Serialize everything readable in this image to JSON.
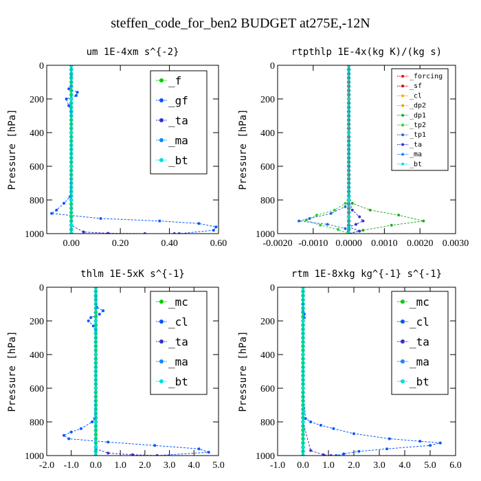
{
  "title": "steffen_code_for_ben2  BUDGET at275E,-12N",
  "chart_data": [
    {
      "type": "line",
      "title": "um  1E-4xm s^{-2}",
      "ylabel": "Pressure [hPa]",
      "xlim": [
        -0.1,
        0.6
      ],
      "ylim": [
        1000,
        0
      ],
      "xticks": [
        0.0,
        0.2,
        0.4,
        0.6
      ],
      "xtick_labels": [
        "0.00",
        "0.20",
        "0.40",
        "0.60"
      ],
      "yticks": [
        0,
        200,
        400,
        600,
        800,
        1000
      ],
      "ytick_labels": [
        "0",
        "200",
        "400",
        "600",
        "800",
        "1000"
      ],
      "legend": {
        "entries": [
          "_f",
          "_gf",
          "_ta",
          "_ma",
          "_bt"
        ],
        "placement": "top-right"
      },
      "series": [
        {
          "name": "_f",
          "color": "#00cc00",
          "x": [
            0,
            0,
            0,
            0,
            0,
            0,
            0,
            0,
            0,
            0,
            0
          ],
          "y": [
            0,
            100,
            200,
            300,
            400,
            500,
            600,
            700,
            800,
            900,
            1000
          ]
        },
        {
          "name": "_gf",
          "color": "#0055ff",
          "x": [
            0,
            0,
            0.0,
            -0.01,
            0.025,
            0.02,
            -0.02,
            -0.01,
            0,
            0,
            0,
            -0.005,
            -0.03,
            -0.06,
            -0.08,
            0.12,
            0.36,
            0.52,
            0.59,
            0.58,
            0.44
          ],
          "y": [
            0,
            60,
            120,
            140,
            160,
            180,
            200,
            240,
            280,
            400,
            600,
            780,
            820,
            860,
            880,
            910,
            925,
            940,
            960,
            980,
            1000
          ]
        },
        {
          "name": "_ta",
          "color": "#3333cc",
          "x": [
            0,
            0,
            0,
            0,
            0,
            0,
            0.05,
            0.15,
            0.3,
            0.42
          ],
          "y": [
            0,
            200,
            400,
            600,
            800,
            950,
            990,
            998,
            1000,
            1000
          ]
        },
        {
          "name": "_ma",
          "color": "#1188ff",
          "x": [
            0,
            0,
            0,
            0,
            0,
            0
          ],
          "y": [
            0,
            200,
            400,
            600,
            800,
            1000
          ]
        },
        {
          "name": "_bt",
          "color": "#00dddd",
          "x": [
            0,
            0,
            0,
            0,
            0,
            0,
            0
          ],
          "y": [
            0,
            200,
            400,
            600,
            800,
            950,
            1000
          ]
        }
      ]
    },
    {
      "type": "line",
      "title": "rtpthlp  1E-4x(kg K)/(kg s)",
      "ylabel": "Pressure [hPa]",
      "xlim": [
        -0.002,
        0.003
      ],
      "ylim": [
        1000,
        0
      ],
      "xticks": [
        -0.002,
        -0.001,
        0.0,
        0.001,
        0.002,
        0.003
      ],
      "xtick_labels": [
        "-0.0020",
        "-0.0010",
        "0.0000",
        "0.0010",
        "0.0020",
        "0.0030"
      ],
      "yticks": [
        0,
        200,
        400,
        600,
        800,
        1000
      ],
      "ytick_labels": [
        "0",
        "200",
        "400",
        "600",
        "800",
        "1000"
      ],
      "legend": {
        "entries": [
          "_forcing",
          "_sf",
          "_cl",
          "_dp2",
          "_dp1",
          "_tp2",
          "_tp1",
          "_ta",
          "_ma",
          "_bt"
        ],
        "placement": "top-right"
      },
      "series": [
        {
          "name": "_forcing",
          "color": "#ff0000",
          "x": [
            0,
            0,
            0,
            0,
            0,
            0,
            0
          ],
          "y": [
            0,
            200,
            400,
            600,
            800,
            900,
            1000
          ]
        },
        {
          "name": "_sf",
          "color": "#cc0000",
          "x": [
            0,
            0,
            0,
            0,
            0,
            0
          ],
          "y": [
            0,
            200,
            400,
            600,
            800,
            1000
          ]
        },
        {
          "name": "_cl",
          "color": "#ffaa00",
          "x": [
            0,
            0,
            0,
            0,
            0,
            0
          ],
          "y": [
            0,
            200,
            400,
            600,
            800,
            1000
          ]
        },
        {
          "name": "_dp2",
          "color": "#ddaa00",
          "x": [
            0,
            0,
            0,
            0,
            0,
            0
          ],
          "y": [
            0,
            200,
            400,
            600,
            800,
            1000
          ]
        },
        {
          "name": "_dp1",
          "color": "#22aa22",
          "x": [
            0,
            0,
            0,
            0.0001,
            0.0006,
            0.0014,
            0.0021,
            0.0012,
            0.0004,
            0
          ],
          "y": [
            0,
            600,
            780,
            820,
            860,
            890,
            925,
            950,
            980,
            1000
          ]
        },
        {
          "name": "_tp2",
          "color": "#33cc33",
          "x": [
            0,
            0,
            0,
            -0.0001,
            -0.0004,
            -0.0009,
            -0.0012,
            -0.0008,
            -0.0003,
            0
          ],
          "y": [
            0,
            600,
            780,
            820,
            860,
            890,
            920,
            950,
            975,
            1000
          ]
        },
        {
          "name": "_tp1",
          "color": "#2266dd",
          "x": [
            0,
            0,
            0,
            -0.0001,
            -0.0005,
            -0.0011,
            -0.0014,
            -0.0006,
            -0.0001,
            0
          ],
          "y": [
            0,
            600,
            800,
            840,
            880,
            910,
            925,
            945,
            970,
            1000
          ]
        },
        {
          "name": "_ta",
          "color": "#3333cc",
          "x": [
            0,
            0,
            0,
            0.0001,
            0.0003,
            0.0004,
            0.0002,
            0,
            0.0003,
            0
          ],
          "y": [
            0,
            600,
            800,
            860,
            900,
            925,
            945,
            960,
            985,
            1000
          ]
        },
        {
          "name": "_ma",
          "color": "#1188ff",
          "x": [
            0,
            0,
            0,
            0,
            0
          ],
          "y": [
            0,
            400,
            800,
            900,
            1000
          ]
        },
        {
          "name": "_bt",
          "color": "#00dddd",
          "x": [
            0,
            0,
            0,
            0,
            0
          ],
          "y": [
            0,
            400,
            800,
            900,
            1000
          ]
        }
      ]
    },
    {
      "type": "line",
      "title": "thlm  1E-5xK s^{-1}",
      "ylabel": "Pressure [hPa]",
      "xlim": [
        -2.0,
        5.0
      ],
      "ylim": [
        1000,
        0
      ],
      "xticks": [
        -2.0,
        -1.0,
        0.0,
        1.0,
        2.0,
        3.0,
        4.0,
        5.0
      ],
      "xtick_labels": [
        "-2.0",
        "-1.0",
        "0.0",
        "1.0",
        "2.0",
        "3.0",
        "4.0",
        "5.0"
      ],
      "yticks": [
        0,
        200,
        400,
        600,
        800,
        1000
      ],
      "ytick_labels": [
        "0",
        "200",
        "400",
        "600",
        "800",
        "1000"
      ],
      "legend": {
        "entries": [
          "_mc",
          "_cl",
          "_ta",
          "_ma",
          "_bt"
        ],
        "placement": "top-right"
      },
      "series": [
        {
          "name": "_mc",
          "color": "#00cc00",
          "x": [
            0,
            0,
            0,
            0,
            0,
            0,
            0,
            0,
            0,
            0,
            0
          ],
          "y": [
            0,
            100,
            200,
            300,
            400,
            500,
            600,
            700,
            800,
            900,
            1000
          ]
        },
        {
          "name": "_cl",
          "color": "#0055ff",
          "x": [
            0,
            0,
            0.05,
            0.3,
            0.15,
            -0.2,
            -0.3,
            -0.1,
            0,
            0,
            0,
            -0.05,
            -0.15,
            -0.6,
            -1.0,
            -1.3,
            -1.1,
            0.5,
            2.4,
            4.2,
            4.6,
            2.5
          ],
          "y": [
            0,
            60,
            120,
            140,
            160,
            180,
            200,
            230,
            260,
            400,
            600,
            780,
            800,
            840,
            860,
            880,
            900,
            920,
            940,
            960,
            980,
            1000
          ]
        },
        {
          "name": "_ta",
          "color": "#3333cc",
          "x": [
            0,
            0,
            0,
            0,
            0,
            0,
            0.5,
            1.5,
            2.5
          ],
          "y": [
            0,
            200,
            400,
            600,
            800,
            960,
            985,
            995,
            1000
          ]
        },
        {
          "name": "_ma",
          "color": "#1188ff",
          "x": [
            0,
            0,
            0,
            0,
            0,
            0
          ],
          "y": [
            0,
            200,
            400,
            600,
            800,
            1000
          ]
        },
        {
          "name": "_bt",
          "color": "#00dddd",
          "x": [
            0,
            0,
            0,
            0,
            0,
            0,
            0
          ],
          "y": [
            0,
            200,
            400,
            600,
            800,
            950,
            1000
          ]
        }
      ]
    },
    {
      "type": "line",
      "title": "rtm  1E-8xkg kg^{-1} s^{-1}",
      "ylabel": "Pressure [hPa]",
      "xlim": [
        -1.0,
        6.0
      ],
      "ylim": [
        1000,
        0
      ],
      "xticks": [
        -1.0,
        0.0,
        1.0,
        2.0,
        3.0,
        4.0,
        5.0,
        6.0
      ],
      "xtick_labels": [
        "-1.0",
        "0.0",
        "1.0",
        "2.0",
        "3.0",
        "4.0",
        "5.0",
        "6.0"
      ],
      "yticks": [
        0,
        200,
        400,
        600,
        800,
        1000
      ],
      "ytick_labels": [
        "0",
        "200",
        "400",
        "600",
        "800",
        "1000"
      ],
      "legend": {
        "entries": [
          "_mc",
          "_cl",
          "_ta",
          "_ma",
          "_bt"
        ],
        "placement": "top-right"
      },
      "series": [
        {
          "name": "_mc",
          "color": "#00cc00",
          "x": [
            0,
            0,
            0,
            0,
            0,
            0,
            0,
            0,
            0,
            0,
            0
          ],
          "y": [
            0,
            100,
            200,
            300,
            400,
            500,
            600,
            700,
            800,
            900,
            1000
          ]
        },
        {
          "name": "_cl",
          "color": "#0055ff",
          "x": [
            0,
            0,
            0,
            0.05,
            0.05,
            0,
            0,
            0,
            0.1,
            0.3,
            0.7,
            1.2,
            2.0,
            3.4,
            4.6,
            5.4,
            5.0,
            3.3,
            2.2,
            1.6,
            1.3
          ],
          "y": [
            0,
            100,
            140,
            160,
            180,
            200,
            400,
            600,
            780,
            800,
            820,
            840,
            870,
            900,
            915,
            925,
            940,
            960,
            975,
            990,
            1000
          ]
        },
        {
          "name": "_ta",
          "color": "#3333cc",
          "x": [
            0,
            0,
            0,
            0,
            0,
            0.3,
            0.8,
            1.1
          ],
          "y": [
            0,
            200,
            400,
            600,
            800,
            970,
            995,
            1000
          ]
        },
        {
          "name": "_ma",
          "color": "#1188ff",
          "x": [
            0,
            0,
            0,
            0,
            0,
            0
          ],
          "y": [
            0,
            200,
            400,
            600,
            800,
            1000
          ]
        },
        {
          "name": "_bt",
          "color": "#00dddd",
          "x": [
            0,
            0,
            0,
            0,
            0,
            0,
            0
          ],
          "y": [
            0,
            200,
            400,
            600,
            800,
            950,
            1000
          ]
        }
      ]
    }
  ]
}
